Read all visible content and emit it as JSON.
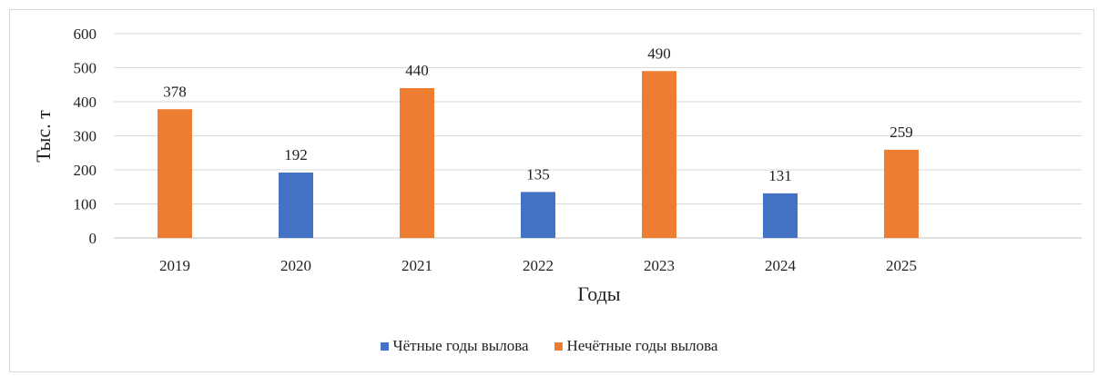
{
  "chart_data": {
    "type": "bar",
    "categories": [
      "2019",
      "2020",
      "2021",
      "2022",
      "2023",
      "2024",
      "2025"
    ],
    "series": [
      {
        "name": "Чётные годы вылова",
        "color": "#4472c4",
        "values": [
          null,
          192,
          null,
          135,
          null,
          131,
          null
        ]
      },
      {
        "name": "Нечётные годы вылова",
        "color": "#ed7d31",
        "values": [
          378,
          null,
          440,
          null,
          490,
          null,
          259
        ]
      }
    ],
    "data_labels": [
      "378",
      "192",
      "440",
      "135",
      "490",
      "131",
      "259"
    ],
    "xlabel": "Годы",
    "ylabel": "Тыс. т",
    "ylim": [
      0,
      600
    ],
    "yticks": [
      0,
      100,
      200,
      300,
      400,
      500,
      600
    ],
    "grid": true,
    "legend_position": "bottom"
  }
}
